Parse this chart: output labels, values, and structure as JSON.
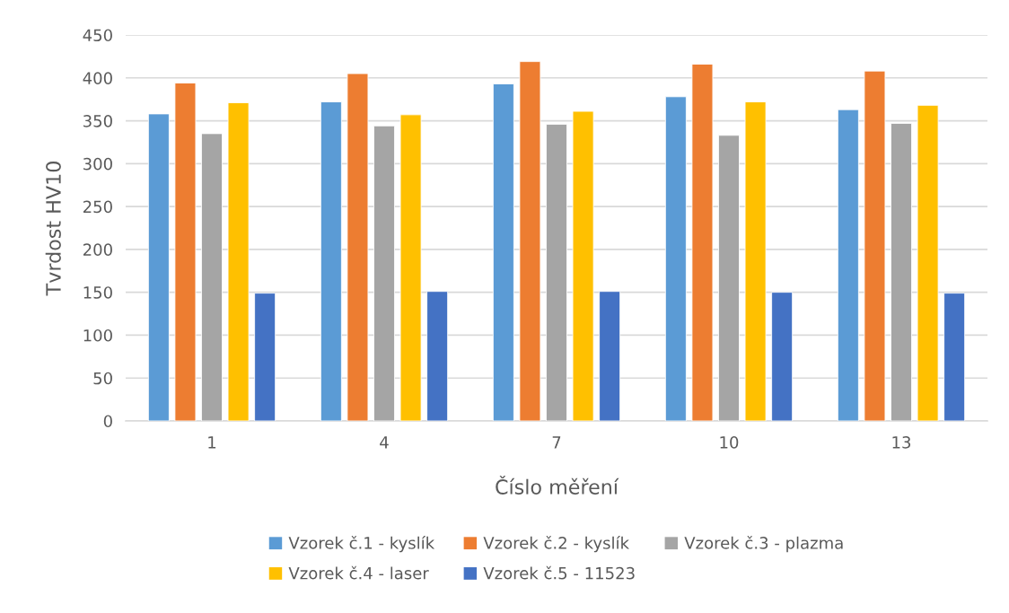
{
  "chart_data": {
    "type": "bar",
    "xlabel": "Číslo měření",
    "ylabel": "Tvrdost HV10",
    "categories": [
      "1",
      "4",
      "7",
      "10",
      "13"
    ],
    "series": [
      {
        "name": "Vzorek č.1 - kyslík",
        "color": "#5b9bd5",
        "values": [
          358,
          372,
          393,
          378,
          363
        ]
      },
      {
        "name": "Vzorek č.2 - kyslík",
        "color": "#ed7d31",
        "values": [
          394,
          405,
          419,
          416,
          408
        ]
      },
      {
        "name": "Vzorek č.3 - plazma",
        "color": "#a5a5a5",
        "values": [
          335,
          344,
          346,
          333,
          347
        ]
      },
      {
        "name": "Vzorek č.4 - laser",
        "color": "#ffc000",
        "values": [
          371,
          357,
          361,
          372,
          368
        ]
      },
      {
        "name": "Vzorek č.5 - 11523",
        "color": "#4472c4",
        "values": [
          149,
          151,
          151,
          150,
          149
        ]
      }
    ],
    "ylim": [
      0,
      450
    ],
    "yticks": [
      0,
      50,
      100,
      150,
      200,
      250,
      300,
      350,
      400,
      450
    ],
    "grid": "y",
    "legend": "bottom"
  }
}
